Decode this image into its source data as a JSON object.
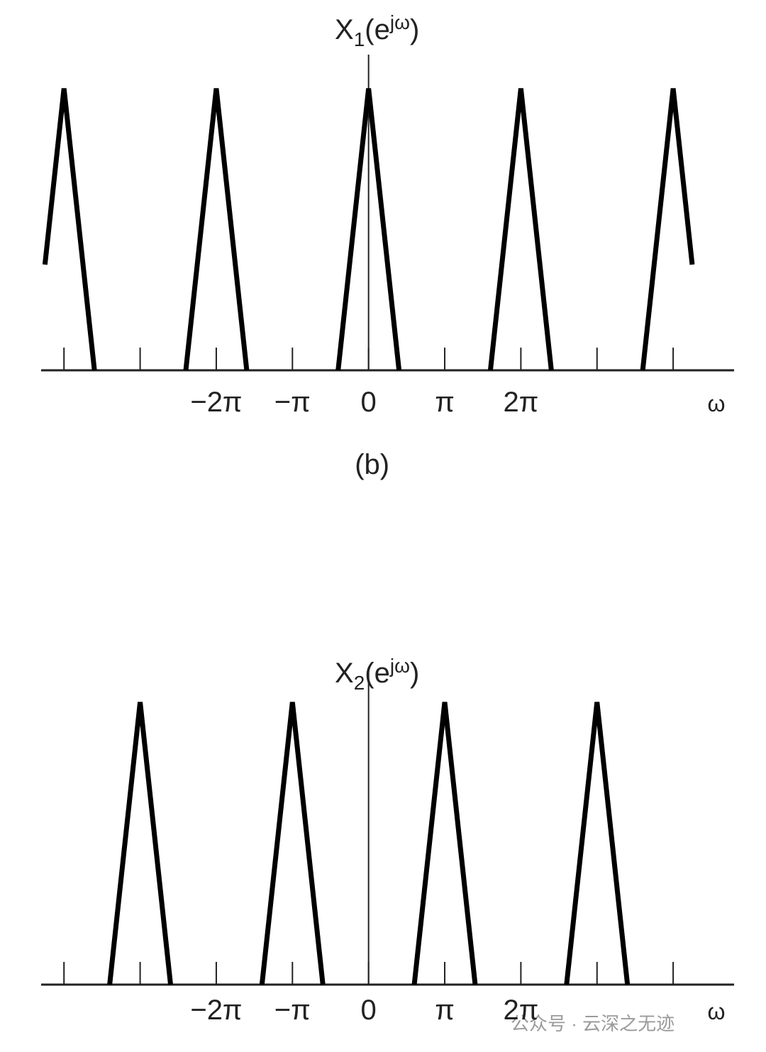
{
  "chart_data": [
    {
      "type": "line",
      "y_label": {
        "base": "X",
        "subscript": "1",
        "argument": "(e",
        "superscript": "jω",
        "close": ")"
      },
      "x_label": "ω",
      "caption": "(b)",
      "x": [
        -4.25,
        -4,
        -3.6,
        -3,
        -2.4,
        -2,
        -1.6,
        -1,
        -0.4,
        0,
        0.4,
        1,
        1.6,
        2,
        2.4,
        3,
        3.6,
        4,
        4.25
      ],
      "series": [
        {
          "color": "#000000",
          "values": [
            0.375,
            1,
            0,
            null,
            0,
            1,
            0,
            null,
            0,
            1,
            0,
            null,
            0,
            1,
            0,
            null,
            0,
            1,
            0.375
          ]
        }
      ],
      "xlim": [
        -4.3,
        4.8
      ],
      "ylim": [
        0,
        1.12
      ],
      "xticks": [
        {
          "value": -4,
          "label": null
        },
        {
          "value": -3,
          "label": null
        },
        {
          "value": -2,
          "label": "−2π"
        },
        {
          "value": -1,
          "label": "−π"
        },
        0,
        {
          "value": 1,
          "label": "π"
        },
        {
          "value": 2,
          "label": "2π"
        },
        {
          "value": 3,
          "label": null
        },
        {
          "value": 4,
          "label": null
        }
      ]
    },
    {
      "type": "line",
      "y_label": {
        "base": "X",
        "subscript": "2",
        "argument": "(e",
        "superscript": "jω",
        "close": ")"
      },
      "x_label": "ω",
      "x": [
        -3.4,
        -3,
        -2.6,
        -2,
        -1.4,
        -1,
        -0.6,
        0,
        0.6,
        1,
        1.4,
        2,
        2.6,
        3,
        3.4
      ],
      "series": [
        {
          "color": "#000000",
          "values": [
            0,
            1,
            0,
            null,
            0,
            1,
            0,
            null,
            0,
            1,
            0,
            null,
            0,
            1,
            0
          ]
        }
      ],
      "xlim": [
        -4.3,
        4.8
      ],
      "ylim": [
        0,
        1.12
      ],
      "xticks": [
        {
          "value": -4,
          "label": null
        },
        {
          "value": -3,
          "label": null
        },
        {
          "value": -2,
          "label": "−2π"
        },
        {
          "value": -1,
          "label": "−π"
        },
        0,
        {
          "value": 1,
          "label": "π"
        },
        {
          "value": 2,
          "label": "2π"
        },
        {
          "value": 3,
          "label": null
        },
        {
          "value": 4,
          "label": null
        }
      ]
    }
  ],
  "watermark": "公众号 · 云深之无迹"
}
